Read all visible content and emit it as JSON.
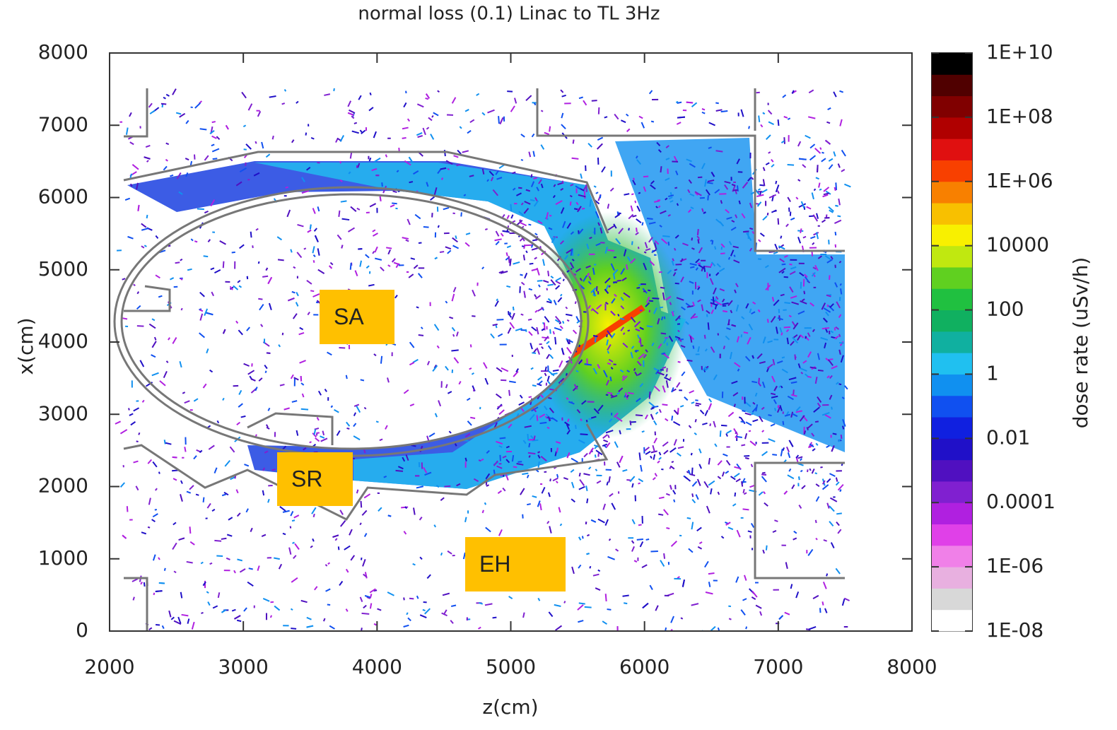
{
  "chart_data": {
    "type": "heatmap",
    "title": "normal loss (0.1) Linac  to TL 3Hz",
    "xlabel": "z(cm)",
    "ylabel": "x(cm)",
    "xlim": [
      2000,
      8000
    ],
    "xticks": [
      2000,
      3000,
      4000,
      5000,
      6000,
      7000,
      8000
    ],
    "ylim": [
      0,
      8000
    ],
    "yticks": [
      0,
      1000,
      2000,
      3000,
      4000,
      5000,
      6000,
      7000,
      8000
    ],
    "colorbar": {
      "label": "dose rate (uSv/h)",
      "log": true,
      "lim": [
        1e-08,
        10000000000
      ],
      "ticks": [
        {
          "value": 1e-08,
          "label": "1E-08"
        },
        {
          "value": 1e-06,
          "label": "1E-06"
        },
        0.0001,
        0.01,
        1,
        100,
        10000,
        {
          "value": 1000000,
          "label": "1E+06"
        },
        {
          "value": 100000000,
          "label": "1E+08"
        },
        {
          "value": 10000000000,
          "label": "1E+10"
        }
      ],
      "colors": [
        "#ffffff",
        "#d8d8d8",
        "#e8b0e0",
        "#f080e8",
        "#e040e8",
        "#b020e0",
        "#8020d0",
        "#5010c0",
        "#2010c8",
        "#1020e0",
        "#1050f0",
        "#1090f0",
        "#20c0f0",
        "#10b0a0",
        "#10b060",
        "#20c040",
        "#60d020",
        "#c0e810",
        "#f8f000",
        "#f8c000",
        "#f88000",
        "#f84000",
        "#e01010",
        "#b00000",
        "#800000",
        "#500000",
        "#000000"
      ]
    },
    "annotations": [
      "SA",
      "SR",
      "EH"
    ],
    "annotation_color": "#ffc000"
  }
}
